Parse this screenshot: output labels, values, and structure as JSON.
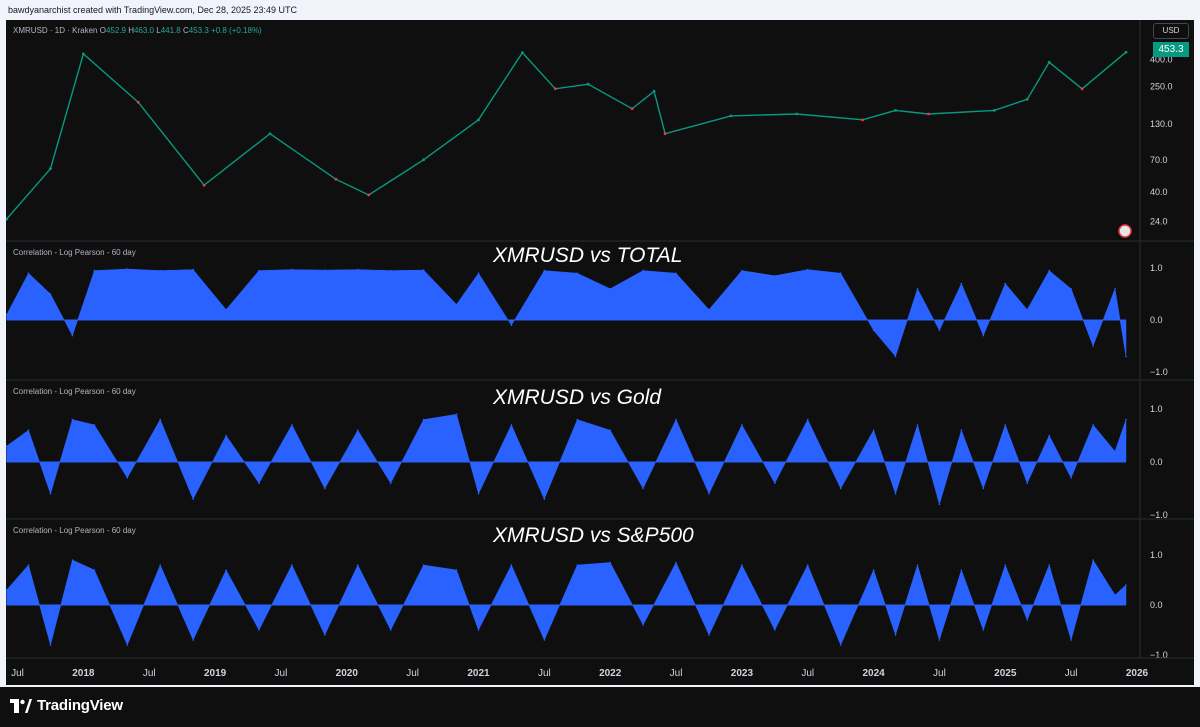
{
  "caption": "bawdyanarchist created with TradingView.com, Dec 28, 2025 23:49 UTC",
  "legend": {
    "symbol": "XMRUSD · 1D · Kraken",
    "open_label": "O",
    "open": "452.9",
    "high_label": "H",
    "high": "463.0",
    "low_label": "L",
    "low": "441.8",
    "close_label": "C",
    "close": "453.3",
    "change": "+0.8 (+0.18%)"
  },
  "currency": "USD",
  "last_price": "453.3",
  "footer_brand": "TradingView",
  "chart_data": [
    {
      "type": "line",
      "title": "XMRUSD · 1D · Kraken",
      "scale": "log",
      "y_ticks": [
        "24.0",
        "40.0",
        "70.0",
        "130.0",
        "250.0",
        "400.0"
      ],
      "x": [
        "2017-06",
        "2017-10",
        "2018-01",
        "2018-06",
        "2018-12",
        "2019-06",
        "2019-12",
        "2020-03",
        "2020-08",
        "2021-01",
        "2021-05",
        "2021-08",
        "2021-11",
        "2022-03",
        "2022-05",
        "2022-06",
        "2022-12",
        "2023-06",
        "2023-12",
        "2024-03",
        "2024-06",
        "2024-12",
        "2025-03",
        "2025-05",
        "2025-08",
        "2025-12"
      ],
      "y": [
        25,
        60,
        440,
        190,
        45,
        110,
        50,
        38,
        70,
        140,
        450,
        240,
        260,
        170,
        230,
        110,
        150,
        155,
        140,
        165,
        155,
        165,
        200,
        380,
        240,
        453
      ],
      "color": "#089981"
    },
    {
      "type": "area",
      "title": "Correlation - Log Pearson - 60 day",
      "heading": "XMRUSD vs TOTAL",
      "y_ticks": [
        "1.0",
        "0.0",
        "−1.0"
      ],
      "ylim": [
        -1,
        1
      ],
      "x": [
        "2017-06",
        "2017-08",
        "2017-10",
        "2017-12",
        "2018-02",
        "2018-05",
        "2018-08",
        "2018-11",
        "2019-02",
        "2019-05",
        "2019-08",
        "2019-11",
        "2020-02",
        "2020-05",
        "2020-08",
        "2020-11",
        "2021-01",
        "2021-04",
        "2021-07",
        "2021-10",
        "2022-01",
        "2022-04",
        "2022-07",
        "2022-10",
        "2023-01",
        "2023-04",
        "2023-07",
        "2023-10",
        "2024-01",
        "2024-03",
        "2024-05",
        "2024-07",
        "2024-09",
        "2024-11",
        "2025-01",
        "2025-03",
        "2025-05",
        "2025-07",
        "2025-09",
        "2025-11",
        "2025-12"
      ],
      "values": [
        0.1,
        0.9,
        0.5,
        -0.3,
        0.95,
        0.98,
        0.95,
        0.97,
        0.2,
        0.95,
        0.97,
        0.96,
        0.97,
        0.95,
        0.96,
        0.3,
        0.9,
        -0.1,
        0.95,
        0.9,
        0.6,
        0.95,
        0.9,
        0.2,
        0.95,
        0.85,
        0.97,
        0.9,
        -0.2,
        -0.7,
        0.6,
        -0.2,
        0.7,
        -0.3,
        0.7,
        0.2,
        0.95,
        0.6,
        -0.5,
        0.6,
        -0.7
      ],
      "color": "#2962ff"
    },
    {
      "type": "area",
      "title": "Correlation - Log Pearson - 60 day",
      "heading": "XMRUSD vs Gold",
      "y_ticks": [
        "1.0",
        "0.0",
        "−1.0"
      ],
      "ylim": [
        -1,
        1
      ],
      "x": [
        "2017-06",
        "2017-08",
        "2017-10",
        "2017-12",
        "2018-02",
        "2018-05",
        "2018-08",
        "2018-11",
        "2019-02",
        "2019-05",
        "2019-08",
        "2019-11",
        "2020-02",
        "2020-05",
        "2020-08",
        "2020-11",
        "2021-01",
        "2021-04",
        "2021-07",
        "2021-10",
        "2022-01",
        "2022-04",
        "2022-07",
        "2022-10",
        "2023-01",
        "2023-04",
        "2023-07",
        "2023-10",
        "2024-01",
        "2024-03",
        "2024-05",
        "2024-07",
        "2024-09",
        "2024-11",
        "2025-01",
        "2025-03",
        "2025-05",
        "2025-07",
        "2025-09",
        "2025-11",
        "2025-12"
      ],
      "values": [
        0.3,
        0.6,
        -0.6,
        0.8,
        0.7,
        -0.3,
        0.8,
        -0.7,
        0.5,
        -0.4,
        0.7,
        -0.5,
        0.6,
        -0.4,
        0.8,
        0.9,
        -0.6,
        0.7,
        -0.7,
        0.8,
        0.6,
        -0.5,
        0.8,
        -0.6,
        0.7,
        -0.4,
        0.8,
        -0.5,
        0.6,
        -0.6,
        0.7,
        -0.8,
        0.6,
        -0.5,
        0.7,
        -0.4,
        0.5,
        -0.3,
        0.7,
        0.2,
        0.8
      ],
      "color": "#2962ff"
    },
    {
      "type": "area",
      "title": "Correlation - Log Pearson - 60 day",
      "heading": "XMRUSD vs S&P500",
      "y_ticks": [
        "1.0",
        "0.0",
        "−1.0"
      ],
      "ylim": [
        -1,
        1
      ],
      "x": [
        "2017-06",
        "2017-08",
        "2017-10",
        "2017-12",
        "2018-02",
        "2018-05",
        "2018-08",
        "2018-11",
        "2019-02",
        "2019-05",
        "2019-08",
        "2019-11",
        "2020-02",
        "2020-05",
        "2020-08",
        "2020-11",
        "2021-01",
        "2021-04",
        "2021-07",
        "2021-10",
        "2022-01",
        "2022-04",
        "2022-07",
        "2022-10",
        "2023-01",
        "2023-04",
        "2023-07",
        "2023-10",
        "2024-01",
        "2024-03",
        "2024-05",
        "2024-07",
        "2024-09",
        "2024-11",
        "2025-01",
        "2025-03",
        "2025-05",
        "2025-07",
        "2025-09",
        "2025-11",
        "2025-12"
      ],
      "values": [
        0.3,
        0.8,
        -0.8,
        0.9,
        0.7,
        -0.8,
        0.8,
        -0.7,
        0.7,
        -0.5,
        0.8,
        -0.6,
        0.8,
        -0.5,
        0.8,
        0.7,
        -0.5,
        0.8,
        -0.7,
        0.8,
        0.85,
        -0.4,
        0.85,
        -0.6,
        0.8,
        -0.5,
        0.8,
        -0.8,
        0.7,
        -0.6,
        0.8,
        -0.7,
        0.7,
        -0.5,
        0.8,
        -0.3,
        0.8,
        -0.7,
        0.9,
        0.2,
        0.4
      ],
      "color": "#2962ff"
    }
  ],
  "x_axis": {
    "labels": [
      "Jul",
      "2018",
      "Jul",
      "2019",
      "Jul",
      "2020",
      "Jul",
      "2021",
      "Jul",
      "2022",
      "Jul",
      "2023",
      "Jul",
      "2024",
      "Jul",
      "2025",
      "Jul",
      "2026"
    ],
    "bold": [
      false,
      true,
      false,
      true,
      false,
      true,
      false,
      true,
      false,
      true,
      false,
      true,
      false,
      true,
      false,
      true,
      false,
      true
    ]
  }
}
